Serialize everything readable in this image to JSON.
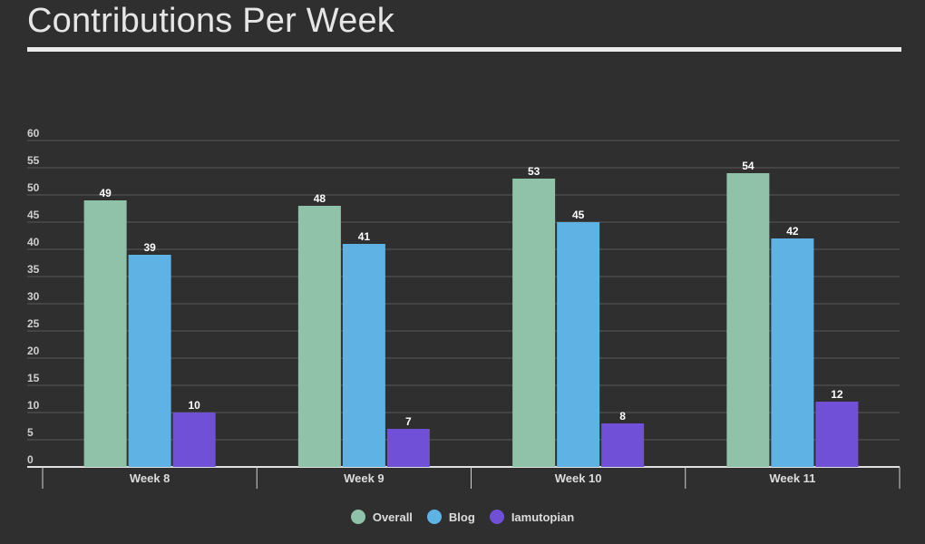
{
  "title": "Contributions Per Week",
  "chart_data": {
    "type": "bar",
    "categories": [
      "Week 8",
      "Week 9",
      "Week 10",
      "Week 11"
    ],
    "series": [
      {
        "name": "Overall",
        "color": "#8fc2a8",
        "values": [
          49,
          48,
          53,
          54
        ]
      },
      {
        "name": "Blog",
        "color": "#5eb3e4",
        "values": [
          39,
          41,
          45,
          42
        ]
      },
      {
        "name": "Iamutopian",
        "color": "#6f50d6",
        "values": [
          10,
          7,
          8,
          12
        ]
      }
    ],
    "yticks": [
      "0",
      "5",
      "10",
      "15",
      "20",
      "25",
      "30",
      "35",
      "40",
      "45",
      "50",
      "55",
      "60"
    ],
    "ylim": [
      0,
      60
    ],
    "grid": true,
    "legend_position": "bottom",
    "data_labels": true
  }
}
